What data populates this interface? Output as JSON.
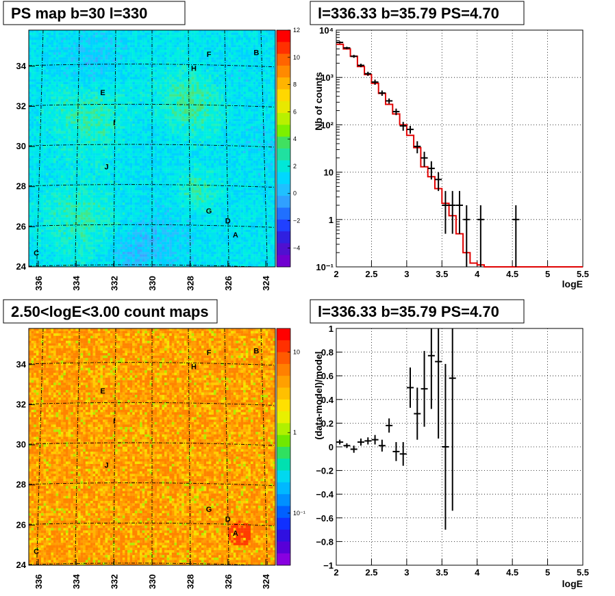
{
  "chart_data": [
    {
      "type": "heatmap",
      "title": "PS map b=30 l=330",
      "x_ticks": [
        "336",
        "334",
        "332",
        "330",
        "328",
        "326",
        "324"
      ],
      "y_ticks": [
        "24",
        "26",
        "28",
        "30",
        "32",
        "34"
      ],
      "palette_ticks": [
        "12",
        "10",
        "8",
        "6",
        "4",
        "2",
        "0",
        "−2",
        "−4"
      ],
      "xlim": [
        336.5,
        323.5
      ],
      "ylim": [
        24,
        35.8
      ],
      "sources": [
        {
          "label": "F",
          "l": 327.0,
          "b": 34.6
        },
        {
          "label": "B",
          "l": 324.5,
          "b": 34.7
        },
        {
          "label": "H",
          "l": 327.8,
          "b": 33.9
        },
        {
          "label": "E",
          "l": 332.6,
          "b": 32.7
        },
        {
          "label": "I",
          "l": 332.0,
          "b": 31.2
        },
        {
          "label": "J",
          "l": 332.4,
          "b": 29.0
        },
        {
          "label": "G",
          "l": 327.0,
          "b": 26.8
        },
        {
          "label": "D",
          "l": 326.0,
          "b": 26.3
        },
        {
          "label": "A",
          "l": 325.6,
          "b": 25.6
        },
        {
          "label": "C",
          "l": 336.1,
          "b": 24.7
        }
      ]
    },
    {
      "type": "line",
      "title": "l=336.33 b=35.79 PS=4.70",
      "xlabel": "logE",
      "ylabel": "Nb of counts",
      "xlim": [
        2,
        5.5
      ],
      "ylim": [
        0.1,
        10000
      ],
      "log_y": true,
      "x_ticks": [
        "2",
        "2.5",
        "3",
        "3.5",
        "4",
        "4.5",
        "5",
        "5.5"
      ],
      "y_ticks": [
        "10⁻¹",
        "1",
        "10",
        "10²",
        "10³",
        "10⁴"
      ],
      "grid": true,
      "data_points": {
        "x": [
          2.05,
          2.15,
          2.25,
          2.35,
          2.45,
          2.55,
          2.65,
          2.75,
          2.85,
          2.95,
          3.05,
          3.15,
          3.25,
          3.35,
          3.45,
          3.55,
          3.65,
          3.75,
          3.85,
          4.05,
          4.55
        ],
        "y": [
          5500,
          4200,
          2800,
          1800,
          1200,
          800,
          470,
          320,
          190,
          95,
          80,
          35,
          20,
          12,
          7,
          2,
          2,
          2,
          1,
          1,
          1
        ],
        "err_lo": [
          300,
          250,
          200,
          150,
          120,
          100,
          60,
          40,
          30,
          20,
          15,
          10,
          7,
          5,
          3,
          1.5,
          1.5,
          1.5,
          0.9,
          0.9,
          0.9
        ],
        "err_hi": [
          300,
          250,
          200,
          150,
          120,
          100,
          60,
          40,
          30,
          20,
          15,
          10,
          7,
          5,
          3,
          2,
          2,
          2,
          1,
          1,
          1
        ]
      },
      "model_steps": {
        "edges": [
          2.0,
          2.1,
          2.2,
          2.3,
          2.4,
          2.5,
          2.6,
          2.7,
          2.8,
          2.9,
          3.0,
          3.1,
          3.2,
          3.3,
          3.4,
          3.5,
          3.6,
          3.7,
          3.8,
          3.9,
          4.0,
          4.1,
          5.5
        ],
        "values": [
          5000,
          4000,
          2800,
          1700,
          1150,
          750,
          460,
          270,
          170,
          100,
          60,
          33,
          13,
          8,
          4.5,
          2.2,
          1.2,
          0.5,
          0.2,
          0.12,
          0.11,
          0.1
        ]
      }
    },
    {
      "type": "heatmap",
      "title": "2.50<logE<3.00 count maps",
      "x_ticks": [
        "336",
        "334",
        "332",
        "330",
        "328",
        "326",
        "324"
      ],
      "y_ticks": [
        "24",
        "26",
        "28",
        "30",
        "32",
        "34"
      ],
      "palette_ticks": [
        "10",
        "1",
        "10⁻¹"
      ],
      "log_scale": true,
      "xlim": [
        336.5,
        323.5
      ],
      "ylim": [
        24,
        35.8
      ]
    },
    {
      "type": "scatter",
      "title": "l=336.33 b=35.79 PS=4.70",
      "xlabel": "logE",
      "ylabel": "(data-model)/model",
      "xlim": [
        2,
        5.5
      ],
      "ylim": [
        -1,
        1
      ],
      "x_ticks": [
        "2",
        "2.5",
        "3",
        "3.5",
        "4",
        "4.5",
        "5",
        "5.5"
      ],
      "y_ticks": [
        "−1",
        "−0.8",
        "−0.6",
        "−0.4",
        "−0.2",
        "0",
        "0.2",
        "0.4",
        "0.6",
        "0.8",
        "1"
      ],
      "grid": true,
      "points": {
        "x": [
          2.05,
          2.15,
          2.25,
          2.35,
          2.45,
          2.55,
          2.65,
          2.75,
          2.85,
          2.95,
          3.05,
          3.15,
          3.25,
          3.35,
          3.45,
          3.55,
          3.65
        ],
        "y": [
          0.04,
          0.01,
          -0.02,
          0.04,
          0.05,
          0.06,
          0.01,
          0.18,
          -0.04,
          -0.06,
          0.5,
          0.28,
          0.49,
          0.77,
          0.72,
          0.0,
          0.58
        ],
        "err": [
          0.02,
          0.02,
          0.03,
          0.03,
          0.03,
          0.04,
          0.05,
          0.06,
          0.08,
          0.1,
          0.17,
          0.22,
          0.32,
          0.45,
          0.65,
          0.7,
          1.12
        ]
      }
    }
  ]
}
